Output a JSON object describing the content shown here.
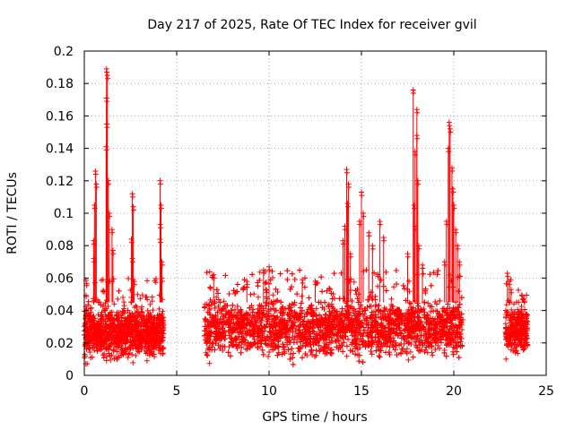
{
  "chart_data": {
    "type": "scatter",
    "title": "Day 217 of 2025, Rate Of TEC Index for receiver gvil",
    "xlabel": "GPS time / hours",
    "ylabel": "ROTI / TECUs",
    "xlim": [
      0,
      25
    ],
    "ylim": [
      0,
      0.2
    ],
    "x_ticks": [
      "0",
      "5",
      "10",
      "15",
      "20",
      "25"
    ],
    "y_ticks": [
      "0",
      "0.02",
      "0.04",
      "0.06",
      "0.08",
      "0.1",
      "0.12",
      "0.14",
      "0.16",
      "0.18",
      "0.2"
    ],
    "grid": true,
    "marker": "plus",
    "color": "#ff0000",
    "segments": [
      {
        "x_start": 0.0,
        "x_end": 4.3,
        "y_low": 0.005,
        "y_high": 0.045
      },
      {
        "x_start": 6.5,
        "x_end": 20.5,
        "y_low": 0.005,
        "y_high": 0.05
      },
      {
        "x_start": 22.8,
        "x_end": 24.0,
        "y_low": 0.008,
        "y_high": 0.045
      }
    ],
    "spikes": [
      {
        "x": 0.6,
        "y": 0.126
      },
      {
        "x": 0.65,
        "y": 0.118
      },
      {
        "x": 0.55,
        "y": 0.105
      },
      {
        "x": 0.5,
        "y": 0.083
      },
      {
        "x": 0.52,
        "y": 0.072
      },
      {
        "x": 1.2,
        "y": 0.189
      },
      {
        "x": 1.25,
        "y": 0.185
      },
      {
        "x": 1.2,
        "y": 0.171
      },
      {
        "x": 1.22,
        "y": 0.155
      },
      {
        "x": 1.18,
        "y": 0.141
      },
      {
        "x": 1.3,
        "y": 0.12
      },
      {
        "x": 1.35,
        "y": 0.1
      },
      {
        "x": 1.5,
        "y": 0.09
      },
      {
        "x": 1.55,
        "y": 0.077
      },
      {
        "x": 2.6,
        "y": 0.112
      },
      {
        "x": 2.65,
        "y": 0.104
      },
      {
        "x": 2.55,
        "y": 0.084
      },
      {
        "x": 2.6,
        "y": 0.072
      },
      {
        "x": 2.7,
        "y": 0.058
      },
      {
        "x": 4.1,
        "y": 0.12
      },
      {
        "x": 4.15,
        "y": 0.105
      },
      {
        "x": 4.1,
        "y": 0.093
      },
      {
        "x": 4.1,
        "y": 0.084
      },
      {
        "x": 4.2,
        "y": 0.07
      },
      {
        "x": 4.2,
        "y": 0.06
      },
      {
        "x": 7.0,
        "y": 0.062
      },
      {
        "x": 8.8,
        "y": 0.058
      },
      {
        "x": 9.7,
        "y": 0.065
      },
      {
        "x": 10.0,
        "y": 0.067
      },
      {
        "x": 11.8,
        "y": 0.059
      },
      {
        "x": 12.5,
        "y": 0.058
      },
      {
        "x": 14.0,
        "y": 0.083
      },
      {
        "x": 14.2,
        "y": 0.127
      },
      {
        "x": 14.3,
        "y": 0.118
      },
      {
        "x": 14.25,
        "y": 0.106
      },
      {
        "x": 14.1,
        "y": 0.092
      },
      {
        "x": 14.4,
        "y": 0.075
      },
      {
        "x": 14.9,
        "y": 0.095
      },
      {
        "x": 15.0,
        "y": 0.113
      },
      {
        "x": 15.1,
        "y": 0.1
      },
      {
        "x": 15.4,
        "y": 0.088
      },
      {
        "x": 15.6,
        "y": 0.08
      },
      {
        "x": 16.0,
        "y": 0.095
      },
      {
        "x": 16.2,
        "y": 0.085
      },
      {
        "x": 17.5,
        "y": 0.075
      },
      {
        "x": 17.8,
        "y": 0.176
      },
      {
        "x": 18.0,
        "y": 0.164
      },
      {
        "x": 18.0,
        "y": 0.148
      },
      {
        "x": 17.9,
        "y": 0.138
      },
      {
        "x": 18.05,
        "y": 0.12
      },
      {
        "x": 17.85,
        "y": 0.105
      },
      {
        "x": 17.9,
        "y": 0.092
      },
      {
        "x": 18.1,
        "y": 0.08
      },
      {
        "x": 18.3,
        "y": 0.068
      },
      {
        "x": 19.5,
        "y": 0.07
      },
      {
        "x": 19.6,
        "y": 0.095
      },
      {
        "x": 19.75,
        "y": 0.156
      },
      {
        "x": 19.8,
        "y": 0.152
      },
      {
        "x": 19.7,
        "y": 0.14
      },
      {
        "x": 19.9,
        "y": 0.128
      },
      {
        "x": 19.95,
        "y": 0.115
      },
      {
        "x": 20.0,
        "y": 0.105
      },
      {
        "x": 20.1,
        "y": 0.09
      },
      {
        "x": 20.2,
        "y": 0.08
      },
      {
        "x": 20.3,
        "y": 0.07
      },
      {
        "x": 22.9,
        "y": 0.063
      },
      {
        "x": 23.0,
        "y": 0.058
      },
      {
        "x": 23.1,
        "y": 0.053
      },
      {
        "x": 23.7,
        "y": 0.049
      },
      {
        "x": 23.8,
        "y": 0.047
      }
    ]
  }
}
